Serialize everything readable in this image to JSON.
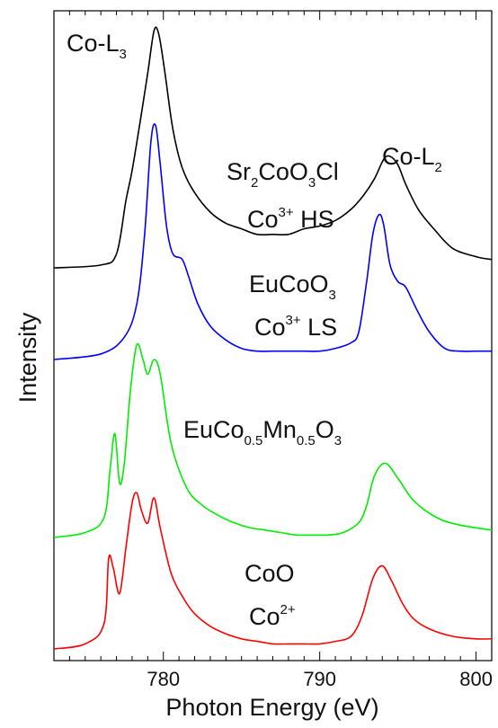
{
  "chart_data": {
    "type": "line",
    "xlabel": "Photon Energy (eV)",
    "ylabel": "Intensity",
    "xlim": [
      773,
      801
    ],
    "y_ticks_shown": false,
    "x_ticks": [
      780,
      790,
      800
    ],
    "x_tick_labels": [
      "780",
      "790",
      "800"
    ],
    "series": [
      {
        "name": "Sr2CoO3Cl",
        "color": "#000000",
        "x": [
          773,
          776,
          777,
          777.6,
          778,
          778.5,
          779,
          779.4,
          779.7,
          780.1,
          780.6,
          781.2,
          782,
          783,
          784,
          785,
          786,
          787,
          788,
          789,
          790,
          791,
          792,
          792.8,
          793.5,
          794.1,
          794.5,
          795,
          795.5,
          796.3,
          797.3,
          798.5,
          800,
          801
        ],
        "y": [
          0.0,
          0.01,
          0.05,
          0.24,
          0.35,
          0.52,
          0.7,
          0.85,
          0.84,
          0.7,
          0.5,
          0.36,
          0.27,
          0.2,
          0.16,
          0.14,
          0.12,
          0.12,
          0.12,
          0.14,
          0.15,
          0.17,
          0.21,
          0.26,
          0.32,
          0.39,
          0.4,
          0.37,
          0.3,
          0.21,
          0.14,
          0.07,
          0.04,
          0.03
        ]
      },
      {
        "name": "EuCoO3",
        "color": "#0000ff",
        "x": [
          773,
          776,
          777.5,
          778.3,
          778.8,
          779.2,
          779.5,
          779.8,
          780.2,
          780.6,
          781.2,
          781.6,
          782.2,
          783,
          784,
          785,
          786,
          787,
          788,
          789,
          790,
          791,
          792,
          792.5,
          793,
          793.4,
          793.8,
          794.1,
          794.5,
          795,
          795.5,
          796.2,
          797,
          798,
          799,
          800,
          801
        ],
        "y": [
          0.0,
          0.02,
          0.08,
          0.2,
          0.45,
          0.78,
          0.84,
          0.7,
          0.48,
          0.38,
          0.36,
          0.3,
          0.2,
          0.12,
          0.07,
          0.04,
          0.03,
          0.03,
          0.03,
          0.03,
          0.03,
          0.04,
          0.06,
          0.1,
          0.28,
          0.45,
          0.52,
          0.48,
          0.34,
          0.28,
          0.26,
          0.18,
          0.1,
          0.04,
          0.03,
          0.03,
          0.03
        ]
      },
      {
        "name": "EuCo0.5Mn0.5O3",
        "color": "#00ee00",
        "x": [
          773,
          775,
          776.2,
          776.6,
          776.9,
          777.2,
          777.5,
          777.9,
          778.3,
          778.7,
          779.0,
          779.4,
          779.8,
          780.5,
          781.5,
          782.5,
          783.5,
          784.5,
          785.5,
          786.5,
          787.5,
          788.5,
          789.5,
          790.5,
          791.5,
          792.5,
          793,
          793.5,
          794.2,
          795,
          796,
          797.5,
          799,
          801
        ],
        "y": [
          0.0,
          0.02,
          0.08,
          0.28,
          0.42,
          0.22,
          0.3,
          0.6,
          0.78,
          0.72,
          0.66,
          0.72,
          0.66,
          0.38,
          0.2,
          0.13,
          0.09,
          0.06,
          0.04,
          0.03,
          0.02,
          0.01,
          0.01,
          0.01,
          0.02,
          0.06,
          0.13,
          0.25,
          0.3,
          0.24,
          0.15,
          0.08,
          0.05,
          0.03
        ]
      },
      {
        "name": "CoO",
        "color": "#ff0000",
        "x": [
          773,
          775,
          776.2,
          776.5,
          776.8,
          777.2,
          777.6,
          778.0,
          778.3,
          778.6,
          779.0,
          779.4,
          779.8,
          780.5,
          781.3,
          782,
          783,
          784,
          785,
          786,
          787,
          788,
          789,
          790,
          791,
          792,
          792.7,
          793.4,
          794.0,
          794.6,
          795.3,
          796,
          797,
          798.5,
          800,
          801
        ],
        "y": [
          0.0,
          0.02,
          0.1,
          0.36,
          0.32,
          0.22,
          0.4,
          0.58,
          0.62,
          0.55,
          0.5,
          0.6,
          0.48,
          0.3,
          0.2,
          0.14,
          0.09,
          0.06,
          0.04,
          0.03,
          0.02,
          0.02,
          0.02,
          0.02,
          0.03,
          0.05,
          0.13,
          0.28,
          0.33,
          0.27,
          0.18,
          0.12,
          0.08,
          0.05,
          0.04,
          0.04
        ]
      }
    ]
  },
  "annotations": {
    "co_l3_main": "Co-L",
    "co_l3_sub": "3",
    "co_l2_main": "Co-L",
    "co_l2_sub": "2",
    "sr_a": "Sr",
    "sr_sub1": "2",
    "sr_b": "CoO",
    "sr_sub2": "3",
    "sr_c": "Cl",
    "sr_state_a": "Co",
    "sr_state_sup": "3+",
    "sr_state_b": " HS",
    "eu_a": "EuCoO",
    "eu_sub": "3",
    "eu_state_a": "Co",
    "eu_state_sup": "3+",
    "eu_state_b": " LS",
    "mn_a": "EuCo",
    "mn_sub1": "0.5",
    "mn_b": "Mn",
    "mn_sub2": "0.5",
    "mn_c": "O",
    "mn_sub3": "3",
    "coo_name": "CoO",
    "coo_state_a": "Co",
    "coo_state_sup": "2+"
  }
}
